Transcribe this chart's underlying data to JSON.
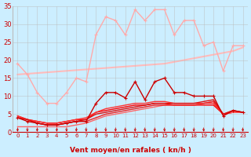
{
  "title": "",
  "xlabel": "Vent moyen/en rafales ( kn/h )",
  "xlim": [
    -0.5,
    23.5
  ],
  "ylim": [
    0,
    35
  ],
  "yticks": [
    0,
    5,
    10,
    15,
    20,
    25,
    30,
    35
  ],
  "xticks": [
    0,
    1,
    2,
    3,
    4,
    5,
    6,
    7,
    8,
    9,
    10,
    11,
    12,
    13,
    14,
    15,
    16,
    17,
    18,
    19,
    20,
    21,
    22,
    23
  ],
  "bg_color": "#cceeff",
  "grid_color": "#bbbbbb",
  "lines": [
    {
      "y": [
        19,
        16,
        11,
        8,
        8,
        11,
        15,
        14,
        27,
        32,
        31,
        27,
        34,
        31,
        34,
        34,
        27,
        31,
        31,
        24,
        25,
        17,
        24,
        24
      ],
      "color": "#ffaaaa",
      "lw": 1.0,
      "marker": "+",
      "ms": 3,
      "zorder": 3
    },
    {
      "y": [
        4,
        3,
        2.5,
        2,
        2,
        2.5,
        3,
        3,
        8,
        11,
        11,
        9.5,
        14,
        9,
        14,
        15,
        11,
        11,
        10,
        10,
        10,
        4.5,
        6,
        5.5
      ],
      "color": "#cc0000",
      "lw": 1.0,
      "marker": "+",
      "ms": 3,
      "zorder": 4
    },
    {
      "y": [
        4.5,
        3.5,
        3,
        2.5,
        2.5,
        3,
        3.5,
        3.5,
        5.5,
        6,
        6.5,
        7,
        7.5,
        7.5,
        8,
        8,
        7.5,
        7.5,
        7.5,
        7.5,
        7.5,
        5,
        5.5,
        5.5
      ],
      "color": "#ff0000",
      "lw": 1.0,
      "marker": null,
      "ms": 0,
      "zorder": 2
    },
    {
      "y": [
        4.5,
        3.5,
        3,
        2.5,
        2.5,
        3,
        3.5,
        4,
        5.5,
        6.5,
        7,
        7.5,
        8,
        8,
        8.5,
        8.5,
        8,
        8,
        8,
        8,
        8,
        5,
        5.5,
        5.5
      ],
      "color": "#ff3333",
      "lw": 1.0,
      "marker": null,
      "ms": 0,
      "zorder": 2
    },
    {
      "y": [
        1.5,
        1.5,
        1.5,
        1.5,
        1.5,
        1.5,
        2,
        2.5,
        3.5,
        4.5,
        5,
        5.5,
        6,
        6.5,
        7,
        7.5,
        7.5,
        7.5,
        7.5,
        8,
        8.5,
        5,
        5.5,
        5.5
      ],
      "color": "#ff6666",
      "lw": 1.0,
      "marker": null,
      "ms": 0,
      "zorder": 2
    },
    {
      "y": [
        4,
        3.5,
        2.5,
        2,
        2,
        2.5,
        3,
        3,
        4,
        5,
        5.5,
        6,
        6.5,
        7,
        7.5,
        7.5,
        7.5,
        7.5,
        7.5,
        8,
        8.5,
        5,
        6,
        5.5
      ],
      "color": "#ee2222",
      "lw": 1.0,
      "marker": null,
      "ms": 0,
      "zorder": 2
    },
    {
      "y": [
        16,
        16.2,
        16.4,
        16.6,
        16.8,
        17,
        17.2,
        17.4,
        17.6,
        17.8,
        18,
        18.2,
        18.4,
        18.6,
        18.8,
        19,
        19.5,
        20,
        20.5,
        21,
        21.5,
        22,
        22.5,
        23.5
      ],
      "color": "#ffbbbb",
      "lw": 1.5,
      "marker": null,
      "ms": 0,
      "zorder": 1
    },
    {
      "y": [
        4,
        3.5,
        2.5,
        2,
        2,
        2.5,
        3,
        3.5,
        5,
        5.5,
        6,
        6.5,
        7,
        7.5,
        8,
        8,
        8,
        8,
        8,
        8.5,
        9,
        5,
        6,
        5.5
      ],
      "color": "#dd1111",
      "lw": 1.0,
      "marker": null,
      "ms": 0,
      "zorder": 2
    }
  ],
  "arrow_color": "#cc0000",
  "xlabel_fontsize": 6.5,
  "xtick_fontsize": 5.0,
  "ytick_fontsize": 6.0
}
